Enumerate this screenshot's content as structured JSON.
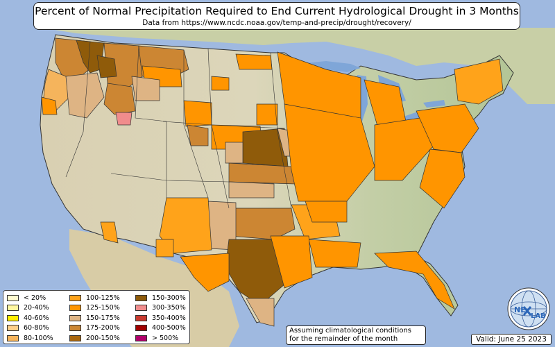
{
  "header": {
    "title": "Percent of Normal Precipitation Required to End Current Hydrological Drought in 3 Months",
    "subtitle": "Data from https://www.ncdc.noaa.gov/temp-and-precip/drought/recovery/"
  },
  "legend": {
    "items": [
      {
        "label": "< 20%",
        "color": "#fffbd0"
      },
      {
        "label": "20-40%",
        "color": "#fff7a0"
      },
      {
        "label": "40-60%",
        "color": "#ffee00"
      },
      {
        "label": "60-80%",
        "color": "#ffd08a"
      },
      {
        "label": "80-100%",
        "color": "#f5b45c"
      },
      {
        "label": "100-125%",
        "color": "#ffa31a"
      },
      {
        "label": "125-150%",
        "color": "#ff9500"
      },
      {
        "label": "150-175%",
        "color": "#deb484"
      },
      {
        "label": "175-200%",
        "color": "#cc8633"
      },
      {
        "label": "200-150%",
        "color": "#a9670f"
      },
      {
        "label": "150-300%",
        "color": "#8f5b0a"
      },
      {
        "label": "300-350%",
        "color": "#f08c8c"
      },
      {
        "label": "350-400%",
        "color": "#c83a2f"
      },
      {
        "label": "400-500%",
        "color": "#a10000"
      },
      {
        "label": "> 500%",
        "color": "#b0006a"
      }
    ]
  },
  "footer": {
    "note_line1": "Assuming climatological conditions",
    "note_line2": "for the remainder of the month",
    "valid": "Valid: June 25 2023"
  },
  "logo": {
    "text_left": "NE",
    "text_right": "LAB",
    "icon": "nexlab-globe-logo"
  },
  "colors": {
    "ocean": "#9fb9e0",
    "land_neutral": "#dcd5b8",
    "land_green": "#b9c79a",
    "great_lakes": "#7fa6d8"
  }
}
